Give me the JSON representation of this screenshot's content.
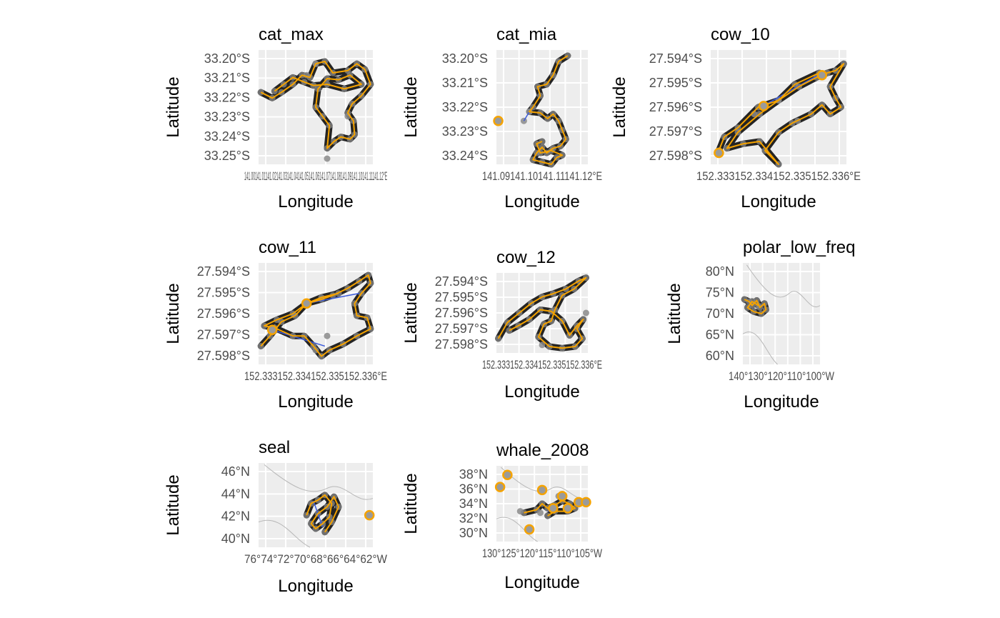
{
  "chart_data": [
    {
      "type": "scatter",
      "title": "cat_max",
      "xlabel": "Longitude",
      "ylabel": "Latitude",
      "yticks": [
        "33.20°S",
        "33.21°S",
        "33.22°S",
        "33.23°S",
        "33.24°S",
        "33.25°S"
      ],
      "xtick_text": "141.00141.01141.02141.03141.04141.05141.06141.07141.08141.09141.10141.11141.12°E",
      "map_background": false,
      "path": [
        [
          0.02,
          0.37
        ],
        [
          0.12,
          0.42
        ],
        [
          0.2,
          0.37
        ],
        [
          0.3,
          0.3
        ],
        [
          0.38,
          0.22
        ],
        [
          0.45,
          0.24
        ],
        [
          0.5,
          0.12
        ],
        [
          0.58,
          0.1
        ],
        [
          0.65,
          0.2
        ],
        [
          0.78,
          0.18
        ],
        [
          0.86,
          0.12
        ],
        [
          0.93,
          0.17
        ],
        [
          0.98,
          0.3
        ],
        [
          0.9,
          0.4
        ],
        [
          0.82,
          0.47
        ],
        [
          0.78,
          0.55
        ],
        [
          0.83,
          0.62
        ],
        [
          0.84,
          0.74
        ],
        [
          0.8,
          0.78
        ],
        [
          0.72,
          0.76
        ],
        [
          0.66,
          0.8
        ],
        [
          0.6,
          0.86
        ],
        [
          0.62,
          0.66
        ],
        [
          0.56,
          0.58
        ],
        [
          0.5,
          0.5
        ],
        [
          0.52,
          0.34
        ],
        [
          0.6,
          0.25
        ],
        [
          0.7,
          0.26
        ],
        [
          0.8,
          0.22
        ],
        [
          0.9,
          0.3
        ],
        [
          0.75,
          0.34
        ],
        [
          0.6,
          0.3
        ],
        [
          0.48,
          0.31
        ],
        [
          0.4,
          0.28
        ],
        [
          0.3,
          0.24
        ],
        [
          0.22,
          0.3
        ],
        [
          0.14,
          0.36
        ]
      ],
      "points": [
        [
          0.6,
          0.95
        ],
        [
          0.78,
          0.58
        ],
        [
          0.42,
          0.22
        ],
        [
          0.5,
          0.12
        ]
      ],
      "blue": []
    },
    {
      "type": "scatter",
      "title": "cat_mia",
      "xlabel": "Longitude",
      "ylabel": "Latitude",
      "yticks": [
        "33.20°S",
        "33.21°S",
        "33.22°S",
        "33.23°S",
        "33.24°S"
      ],
      "xtick_text": "141.09141.10141.11141.12°E",
      "map_background": false,
      "path": [
        [
          0.78,
          0.05
        ],
        [
          0.68,
          0.1
        ],
        [
          0.62,
          0.22
        ],
        [
          0.55,
          0.3
        ],
        [
          0.45,
          0.32
        ],
        [
          0.48,
          0.4
        ],
        [
          0.4,
          0.5
        ],
        [
          0.36,
          0.54
        ],
        [
          0.48,
          0.55
        ],
        [
          0.56,
          0.6
        ],
        [
          0.62,
          0.56
        ],
        [
          0.68,
          0.62
        ],
        [
          0.72,
          0.7
        ],
        [
          0.76,
          0.78
        ],
        [
          0.7,
          0.84
        ],
        [
          0.62,
          0.86
        ],
        [
          0.55,
          0.9
        ],
        [
          0.5,
          0.85
        ],
        [
          0.44,
          0.9
        ],
        [
          0.4,
          0.96
        ],
        [
          0.5,
          0.98
        ],
        [
          0.6,
          1.0
        ],
        [
          0.66,
          0.94
        ],
        [
          0.72,
          0.92
        ],
        [
          0.6,
          0.88
        ],
        [
          0.48,
          0.9
        ],
        [
          0.44,
          0.82
        ],
        [
          0.5,
          0.8
        ]
      ],
      "points": [
        [
          0.36,
          0.54
        ],
        [
          0.3,
          0.62
        ]
      ],
      "blue": [
        [
          0.3,
          0.62
        ],
        [
          0.36,
          0.54
        ]
      ],
      "open": [
        [
          0.02,
          0.62
        ]
      ]
    },
    {
      "type": "scatter",
      "title": "cow_10",
      "xlabel": "Longitude",
      "ylabel": "Latitude",
      "yticks": [
        "27.594°S",
        "27.595°S",
        "27.596°S",
        "27.597°S",
        "27.598°S"
      ],
      "xtick_text": "152.333152.334152.335152.336°E",
      "map_background": false,
      "path": [
        [
          0.06,
          0.88
        ],
        [
          0.1,
          0.76
        ],
        [
          0.2,
          0.68
        ],
        [
          0.35,
          0.5
        ],
        [
          0.5,
          0.44
        ],
        [
          0.65,
          0.32
        ],
        [
          0.78,
          0.24
        ],
        [
          0.86,
          0.2
        ],
        [
          0.92,
          0.18
        ],
        [
          0.98,
          0.12
        ],
        [
          0.88,
          0.32
        ],
        [
          0.92,
          0.42
        ],
        [
          0.96,
          0.5
        ],
        [
          0.88,
          0.56
        ],
        [
          0.82,
          0.48
        ],
        [
          0.74,
          0.56
        ],
        [
          0.6,
          0.64
        ],
        [
          0.5,
          0.72
        ],
        [
          0.4,
          0.88
        ],
        [
          0.5,
          1.0
        ],
        [
          0.36,
          0.8
        ],
        [
          0.24,
          0.82
        ],
        [
          0.12,
          0.86
        ],
        [
          0.2,
          0.72
        ],
        [
          0.36,
          0.56
        ],
        [
          0.5,
          0.44
        ],
        [
          0.62,
          0.3
        ],
        [
          0.8,
          0.2
        ]
      ],
      "points": [
        [
          0.32,
          0.56
        ],
        [
          0.64,
          0.62
        ]
      ],
      "blue": [
        [
          0.4,
          0.48
        ],
        [
          0.82,
          0.2
        ]
      ],
      "open": [
        [
          0.39,
          0.49
        ],
        [
          0.82,
          0.22
        ],
        [
          0.06,
          0.9
        ]
      ]
    },
    {
      "type": "scatter",
      "title": "cow_11",
      "xlabel": "Longitude",
      "ylabel": "Latitude",
      "yticks": [
        "27.594°S",
        "27.595°S",
        "27.596°S",
        "27.597°S",
        "27.598°S"
      ],
      "xtick_text": "152.333152.334152.335152.336°E",
      "map_background": false,
      "path": [
        [
          0.02,
          0.82
        ],
        [
          0.1,
          0.72
        ],
        [
          0.2,
          0.58
        ],
        [
          0.32,
          0.52
        ],
        [
          0.42,
          0.4
        ],
        [
          0.55,
          0.36
        ],
        [
          0.65,
          0.32
        ],
        [
          0.78,
          0.25
        ],
        [
          0.88,
          0.18
        ],
        [
          0.96,
          0.12
        ],
        [
          0.98,
          0.2
        ],
        [
          0.9,
          0.3
        ],
        [
          0.84,
          0.4
        ],
        [
          0.86,
          0.52
        ],
        [
          0.95,
          0.54
        ],
        [
          0.98,
          0.65
        ],
        [
          0.86,
          0.72
        ],
        [
          0.74,
          0.8
        ],
        [
          0.62,
          0.86
        ],
        [
          0.55,
          0.92
        ],
        [
          0.48,
          0.82
        ],
        [
          0.4,
          0.72
        ],
        [
          0.3,
          0.72
        ],
        [
          0.14,
          0.64
        ],
        [
          0.05,
          0.62
        ],
        [
          0.16,
          0.56
        ],
        [
          0.3,
          0.5
        ],
        [
          0.42,
          0.4
        ],
        [
          0.55,
          0.34
        ],
        [
          0.7,
          0.3
        ]
      ],
      "points": [
        [
          0.6,
          0.72
        ],
        [
          0.5,
          0.86
        ]
      ],
      "blue": [
        [
          0.42,
          0.4
        ],
        [
          0.88,
          0.3
        ],
        [
          0.12,
          0.66
        ],
        [
          0.58,
          0.82
        ]
      ],
      "open": [
        [
          0.42,
          0.4
        ],
        [
          0.12,
          0.66
        ]
      ]
    },
    {
      "type": "scatter",
      "title": "cow_12",
      "xlabel": "Longitude",
      "ylabel": "Latitude",
      "yticks": [
        "27.594°S",
        "27.595°S",
        "27.596°S",
        "27.597°S",
        "27.598°S"
      ],
      "xtick_text": "152.333152.334152.335152.336°E",
      "map_background": false,
      "path": [
        [
          0.02,
          0.82
        ],
        [
          0.12,
          0.62
        ],
        [
          0.25,
          0.5
        ],
        [
          0.38,
          0.38
        ],
        [
          0.5,
          0.3
        ],
        [
          0.62,
          0.26
        ],
        [
          0.76,
          0.2
        ],
        [
          0.9,
          0.1
        ],
        [
          0.98,
          0.06
        ],
        [
          0.85,
          0.2
        ],
        [
          0.72,
          0.28
        ],
        [
          0.64,
          0.46
        ],
        [
          0.6,
          0.6
        ],
        [
          0.52,
          0.64
        ],
        [
          0.46,
          0.8
        ],
        [
          0.58,
          0.92
        ],
        [
          0.72,
          0.94
        ],
        [
          0.86,
          0.92
        ],
        [
          0.94,
          0.82
        ],
        [
          0.88,
          0.7
        ],
        [
          0.95,
          0.58
        ],
        [
          0.88,
          0.66
        ],
        [
          0.8,
          0.78
        ],
        [
          0.72,
          0.6
        ],
        [
          0.6,
          0.48
        ],
        [
          0.48,
          0.46
        ],
        [
          0.36,
          0.58
        ],
        [
          0.24,
          0.66
        ],
        [
          0.14,
          0.72
        ]
      ],
      "points": [
        [
          0.5,
          0.9
        ],
        [
          0.98,
          0.5
        ]
      ],
      "blue": [],
      "open": []
    },
    {
      "type": "scatter",
      "title": "polar_low_freq",
      "xlabel": "Longitude",
      "ylabel": "Latitude",
      "yticks": [
        "80°N",
        "75°N",
        "70°N",
        "65°N",
        "60°N"
      ],
      "xtick_text": "140°130°120°110°100°W",
      "map_background": true,
      "path": [
        [
          0.02,
          0.36
        ],
        [
          0.08,
          0.38
        ],
        [
          0.12,
          0.42
        ],
        [
          0.18,
          0.37
        ],
        [
          0.22,
          0.44
        ],
        [
          0.28,
          0.4
        ],
        [
          0.3,
          0.46
        ],
        [
          0.24,
          0.5
        ],
        [
          0.14,
          0.48
        ],
        [
          0.06,
          0.44
        ],
        [
          0.12,
          0.38
        ],
        [
          0.2,
          0.42
        ]
      ],
      "points": [],
      "blue": [],
      "open": []
    },
    {
      "type": "scatter",
      "title": "seal",
      "xlabel": "Longitude",
      "ylabel": "Latitude",
      "yticks": [
        "46°N",
        "44°N",
        "42°N",
        "40°N"
      ],
      "xtick_text": "76°74°72°70°68°66°64°62°W",
      "map_background": true,
      "path": [
        [
          0.42,
          0.62
        ],
        [
          0.46,
          0.48
        ],
        [
          0.52,
          0.44
        ],
        [
          0.58,
          0.38
        ],
        [
          0.64,
          0.48
        ],
        [
          0.62,
          0.64
        ],
        [
          0.56,
          0.72
        ],
        [
          0.5,
          0.78
        ],
        [
          0.46,
          0.72
        ],
        [
          0.52,
          0.6
        ],
        [
          0.6,
          0.52
        ],
        [
          0.66,
          0.4
        ],
        [
          0.7,
          0.52
        ],
        [
          0.64,
          0.7
        ],
        [
          0.58,
          0.82
        ]
      ],
      "points": [],
      "blue": [
        [
          0.48,
          0.45
        ],
        [
          0.56,
          0.76
        ]
      ],
      "open": [
        [
          0.97,
          0.62
        ]
      ]
    },
    {
      "type": "scatter",
      "title": "whale_2008",
      "xlabel": "Longitude",
      "ylabel": "Latitude",
      "yticks": [
        "38°N",
        "36°N",
        "34°N",
        "32°N",
        "30°N"
      ],
      "xtick_text": "130°125°120°115°110°105°W",
      "map_background": true,
      "path": [
        [
          0.3,
          0.62
        ],
        [
          0.44,
          0.58
        ],
        [
          0.5,
          0.5
        ],
        [
          0.56,
          0.56
        ],
        [
          0.64,
          0.52
        ],
        [
          0.72,
          0.46
        ],
        [
          0.8,
          0.5
        ],
        [
          0.86,
          0.56
        ],
        [
          0.78,
          0.6
        ],
        [
          0.64,
          0.6
        ],
        [
          0.56,
          0.66
        ]
      ],
      "points": [
        [
          0.48,
          0.62
        ],
        [
          0.26,
          0.6
        ],
        [
          0.68,
          0.4
        ],
        [
          0.9,
          0.5
        ]
      ],
      "blue": [
        [
          0.56,
          0.6
        ],
        [
          0.66,
          0.56
        ]
      ],
      "open": [
        [
          0.04,
          0.28
        ],
        [
          0.12,
          0.12
        ],
        [
          0.5,
          0.32
        ],
        [
          0.72,
          0.4
        ],
        [
          0.9,
          0.48
        ],
        [
          0.36,
          0.84
        ],
        [
          0.62,
          0.56
        ],
        [
          0.78,
          0.56
        ],
        [
          0.98,
          0.48
        ]
      ]
    }
  ]
}
